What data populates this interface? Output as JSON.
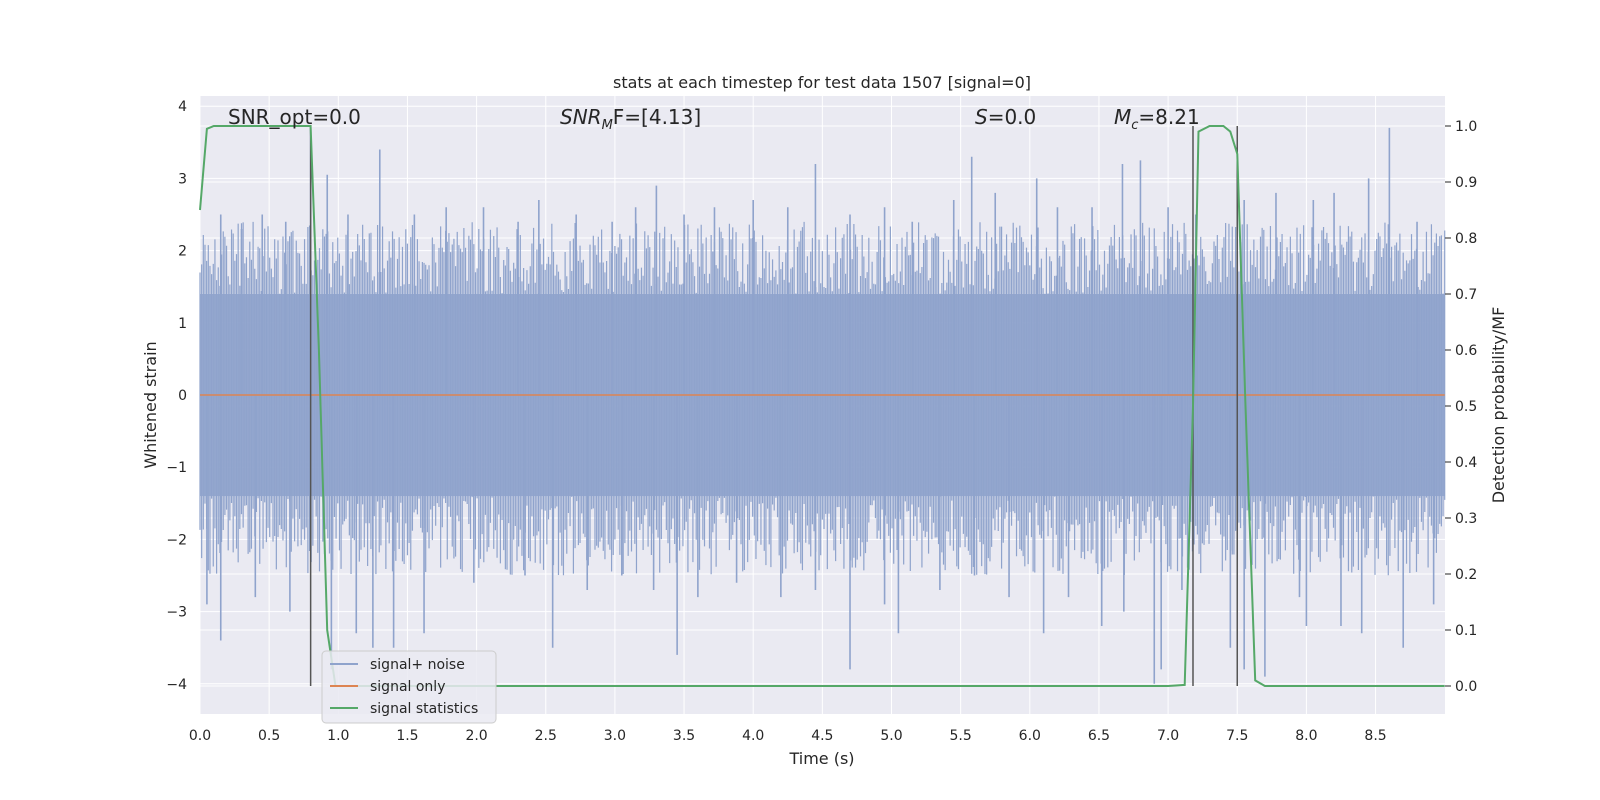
{
  "chart_data": {
    "type": "line",
    "title": "stats at each timestep for test data 1507 [signal=0]",
    "xlabel": "Time (s)",
    "ylabel": "Whitened strain",
    "y2label": "Detection probability/MF",
    "xlim": [
      0.0,
      9.0
    ],
    "ylim": [
      -4.4,
      4.1
    ],
    "y2lim": [
      -0.05,
      1.035
    ],
    "x_ticks": [
      "0.0",
      "0.5",
      "1.0",
      "1.5",
      "2.0",
      "2.5",
      "3.0",
      "3.5",
      "4.0",
      "4.5",
      "5.0",
      "5.5",
      "6.0",
      "6.5",
      "7.0",
      "7.5",
      "8.0",
      "8.5"
    ],
    "y_ticks": [
      "4",
      "3",
      "2",
      "1",
      "0",
      "−1",
      "−2",
      "−3",
      "−4"
    ],
    "y2_ticks": [
      "1.0",
      "0.9",
      "0.8",
      "0.7",
      "0.6",
      "0.5",
      "0.4",
      "0.3",
      "0.2",
      "0.1",
      "0.0"
    ],
    "grid": true,
    "legend_position": "lower-left",
    "annotations": {
      "snr_opt": "SNR_opt=0.0",
      "snr_mf_label": "SNR",
      "snr_mf_sub": "M",
      "snr_mf_rest": "F=[4.13]",
      "s_label": "S",
      "s_rest": "=0.0",
      "mc_label": "M",
      "mc_sub": "c",
      "mc_rest": "=8.21"
    },
    "vertical_markers_s": [
      0.8,
      7.18,
      7.5
    ],
    "series": [
      {
        "name": "signal+ noise",
        "axis": "left",
        "color": "#8fa3cc",
        "amplitude_band": [
          -1.4,
          1.4
        ],
        "peaks": [
          [
            0.15,
            2.5
          ],
          [
            0.3,
            2.3
          ],
          [
            0.45,
            2.5
          ],
          [
            0.62,
            2.4
          ],
          [
            0.8,
            3.7
          ],
          [
            0.92,
            3.05
          ],
          [
            1.07,
            2.5
          ],
          [
            1.3,
            3.4
          ],
          [
            1.55,
            2.5
          ],
          [
            1.78,
            2.6
          ],
          [
            2.05,
            2.6
          ],
          [
            2.3,
            2.4
          ],
          [
            2.45,
            2.7
          ],
          [
            2.72,
            2.5
          ],
          [
            2.98,
            2.4
          ],
          [
            3.15,
            2.6
          ],
          [
            3.3,
            2.9
          ],
          [
            3.5,
            2.5
          ],
          [
            3.72,
            2.6
          ],
          [
            4.0,
            2.7
          ],
          [
            4.25,
            2.6
          ],
          [
            4.45,
            3.2
          ],
          [
            4.7,
            2.5
          ],
          [
            4.95,
            2.6
          ],
          [
            5.15,
            2.4
          ],
          [
            5.45,
            2.7
          ],
          [
            5.58,
            3.3
          ],
          [
            5.75,
            2.8
          ],
          [
            6.05,
            3.0
          ],
          [
            6.2,
            2.6
          ],
          [
            6.45,
            2.6
          ],
          [
            6.67,
            3.2
          ],
          [
            6.8,
            3.25
          ],
          [
            7.0,
            2.6
          ],
          [
            7.2,
            2.5
          ],
          [
            7.55,
            2.7
          ],
          [
            7.78,
            2.8
          ],
          [
            8.05,
            2.7
          ],
          [
            8.2,
            2.8
          ],
          [
            8.45,
            3.0
          ],
          [
            8.6,
            3.7
          ],
          [
            8.8,
            2.4
          ]
        ],
        "troughs": [
          [
            0.05,
            -2.9
          ],
          [
            0.15,
            -3.4
          ],
          [
            0.4,
            -2.8
          ],
          [
            0.65,
            -3.0
          ],
          [
            0.95,
            -3.8
          ],
          [
            1.13,
            -3.3
          ],
          [
            1.25,
            -3.5
          ],
          [
            1.4,
            -3.5
          ],
          [
            1.62,
            -3.3
          ],
          [
            1.98,
            -2.6
          ],
          [
            2.35,
            -2.5
          ],
          [
            2.55,
            -3.5
          ],
          [
            2.8,
            -2.7
          ],
          [
            3.05,
            -2.5
          ],
          [
            3.28,
            -2.7
          ],
          [
            3.45,
            -3.6
          ],
          [
            3.6,
            -2.8
          ],
          [
            3.88,
            -2.6
          ],
          [
            4.2,
            -2.8
          ],
          [
            4.45,
            -2.7
          ],
          [
            4.7,
            -3.8
          ],
          [
            4.95,
            -2.9
          ],
          [
            5.05,
            -3.3
          ],
          [
            5.35,
            -2.7
          ],
          [
            5.6,
            -2.5
          ],
          [
            5.85,
            -2.8
          ],
          [
            6.1,
            -3.3
          ],
          [
            6.28,
            -2.8
          ],
          [
            6.52,
            -3.2
          ],
          [
            6.68,
            -3.0
          ],
          [
            6.9,
            -4.0
          ],
          [
            6.95,
            -3.8
          ],
          [
            7.1,
            -2.7
          ],
          [
            7.45,
            -3.5
          ],
          [
            7.55,
            -3.8
          ],
          [
            7.7,
            -3.9
          ],
          [
            7.95,
            -2.8
          ],
          [
            8.0,
            -3.2
          ],
          [
            8.25,
            -3.2
          ],
          [
            8.4,
            -3.3
          ],
          [
            8.7,
            -3.5
          ],
          [
            8.92,
            -2.9
          ]
        ]
      },
      {
        "name": "signal only",
        "axis": "left",
        "color": "#dd8452",
        "x": [
          0.0,
          9.0
        ],
        "y": [
          0.0,
          0.0
        ]
      },
      {
        "name": "signal statistics",
        "axis": "right",
        "color": "#55a868",
        "x": [
          0.0,
          0.05,
          0.1,
          0.2,
          0.4,
          0.6,
          0.8,
          0.86,
          0.92,
          0.98,
          1.1,
          2.0,
          4.0,
          6.0,
          7.0,
          7.12,
          7.18,
          7.22,
          7.3,
          7.4,
          7.45,
          7.5,
          7.56,
          7.63,
          7.7,
          8.0,
          9.0
        ],
        "y": [
          0.85,
          0.995,
          1.0,
          1.0,
          1.0,
          1.0,
          1.0,
          0.6,
          0.1,
          0.0,
          0.0,
          0.0,
          0.0,
          0.0,
          0.0,
          0.002,
          0.5,
          0.99,
          1.0,
          1.0,
          0.99,
          0.95,
          0.5,
          0.01,
          0.0,
          0.0,
          0.0
        ]
      }
    ]
  }
}
